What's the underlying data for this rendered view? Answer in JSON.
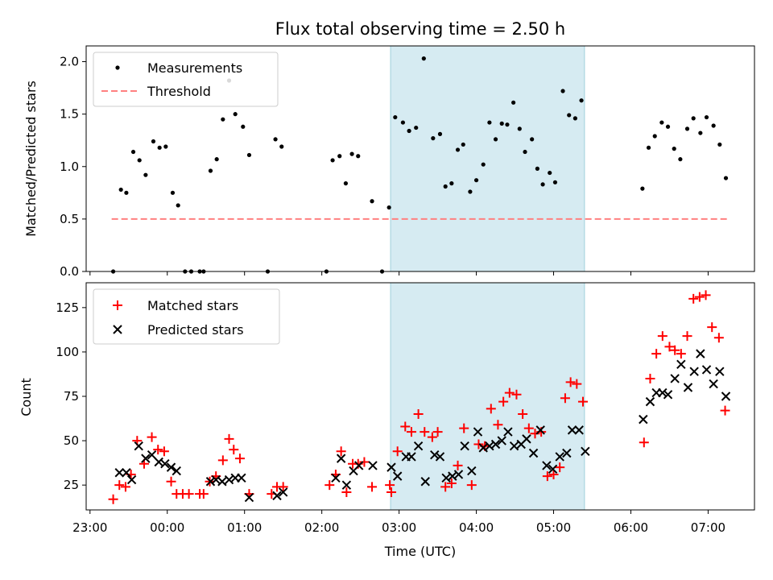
{
  "chart_data": {
    "title": "Flux total observing time = 2.50 h",
    "xlabel": "Time (UTC)",
    "x_unit": "hours_utc",
    "x_ticks": [
      {
        "value": -1,
        "label": "23:00"
      },
      {
        "value": 0,
        "label": "00:00"
      },
      {
        "value": 1,
        "label": "01:00"
      },
      {
        "value": 2,
        "label": "02:00"
      },
      {
        "value": 3,
        "label": "03:00"
      },
      {
        "value": 4,
        "label": "04:00"
      },
      {
        "value": 5,
        "label": "05:00"
      },
      {
        "value": 6,
        "label": "06:00"
      },
      {
        "value": 7,
        "label": "07:00"
      }
    ],
    "xlim": [
      -1.05,
      7.6
    ],
    "highlight_span": {
      "x": [
        2.89,
        5.4
      ],
      "color": "#add8e6"
    },
    "panels": [
      {
        "type": "scatter",
        "ylabel": "Matched/Predicted stars",
        "ylim": [
          0,
          2.15
        ],
        "y_ticks": [
          "0.0",
          "0.5",
          "1.0",
          "1.5",
          "2.0"
        ],
        "legend": "top-left",
        "series": [
          {
            "name": "Measurements",
            "marker": "dot",
            "color": "#000000",
            "points": [
              [
                -0.7,
                0.0
              ],
              [
                -0.6,
                0.78
              ],
              [
                -0.53,
                0.75
              ],
              [
                -0.44,
                1.14
              ],
              [
                -0.36,
                1.06
              ],
              [
                -0.28,
                0.92
              ],
              [
                -0.18,
                1.24
              ],
              [
                -0.1,
                1.18
              ],
              [
                -0.02,
                1.19
              ],
              [
                0.07,
                0.75
              ],
              [
                0.14,
                0.63
              ],
              [
                0.23,
                0.0
              ],
              [
                0.31,
                0.0
              ],
              [
                0.42,
                0.0
              ],
              [
                0.47,
                0.0
              ],
              [
                0.56,
                0.96
              ],
              [
                0.64,
                1.07
              ],
              [
                0.72,
                1.45
              ],
              [
                0.8,
                1.82
              ],
              [
                0.88,
                1.5
              ],
              [
                0.98,
                1.38
              ],
              [
                1.06,
                1.11
              ],
              [
                1.3,
                0.0
              ],
              [
                1.4,
                1.26
              ],
              [
                1.48,
                1.19
              ],
              [
                2.06,
                0.0
              ],
              [
                2.14,
                1.06
              ],
              [
                2.23,
                1.1
              ],
              [
                2.31,
                0.84
              ],
              [
                2.39,
                1.12
              ],
              [
                2.47,
                1.1
              ],
              [
                2.65,
                0.67
              ],
              [
                2.78,
                0.0
              ],
              [
                2.87,
                0.61
              ],
              [
                2.95,
                1.47
              ],
              [
                3.05,
                1.42
              ],
              [
                3.13,
                1.34
              ],
              [
                3.22,
                1.37
              ],
              [
                3.32,
                2.03
              ],
              [
                3.44,
                1.27
              ],
              [
                3.53,
                1.31
              ],
              [
                3.6,
                0.81
              ],
              [
                3.68,
                0.84
              ],
              [
                3.76,
                1.16
              ],
              [
                3.83,
                1.21
              ],
              [
                3.92,
                0.76
              ],
              [
                4.0,
                0.87
              ],
              [
                4.09,
                1.02
              ],
              [
                4.17,
                1.42
              ],
              [
                4.25,
                1.26
              ],
              [
                4.33,
                1.41
              ],
              [
                4.4,
                1.4
              ],
              [
                4.48,
                1.61
              ],
              [
                4.56,
                1.36
              ],
              [
                4.63,
                1.14
              ],
              [
                4.72,
                1.26
              ],
              [
                4.79,
                0.98
              ],
              [
                4.86,
                0.83
              ],
              [
                4.95,
                0.94
              ],
              [
                5.02,
                0.85
              ],
              [
                5.12,
                1.72
              ],
              [
                5.2,
                1.49
              ],
              [
                5.28,
                1.46
              ],
              [
                5.36,
                1.63
              ],
              [
                6.15,
                0.79
              ],
              [
                6.23,
                1.18
              ],
              [
                6.31,
                1.29
              ],
              [
                6.4,
                1.42
              ],
              [
                6.48,
                1.38
              ],
              [
                6.56,
                1.17
              ],
              [
                6.64,
                1.07
              ],
              [
                6.73,
                1.36
              ],
              [
                6.81,
                1.46
              ],
              [
                6.9,
                1.32
              ],
              [
                6.98,
                1.47
              ],
              [
                7.07,
                1.39
              ],
              [
                7.15,
                1.21
              ],
              [
                7.23,
                0.89
              ]
            ]
          },
          {
            "name": "Threshold",
            "type": "hline",
            "style": "dashed",
            "color": "#ff8080",
            "y": 0.5,
            "x_range": [
              -0.72,
              7.25
            ]
          }
        ]
      },
      {
        "type": "scatter",
        "ylabel": "Count",
        "ylim": [
          11,
          139
        ],
        "y_ticks": [
          "25",
          "50",
          "75",
          "100",
          "125"
        ],
        "legend": "top-left",
        "series": [
          {
            "name": "Matched stars",
            "marker": "plus",
            "color": "#ff0000",
            "points": [
              [
                -0.7,
                17
              ],
              [
                -0.62,
                25
              ],
              [
                -0.54,
                24
              ],
              [
                -0.47,
                31
              ],
              [
                -0.39,
                50
              ],
              [
                -0.3,
                37
              ],
              [
                -0.2,
                52
              ],
              [
                -0.12,
                45
              ],
              [
                -0.04,
                44
              ],
              [
                0.05,
                27
              ],
              [
                0.12,
                20
              ],
              [
                0.2,
                20
              ],
              [
                0.28,
                20
              ],
              [
                0.42,
                20
              ],
              [
                0.47,
                20
              ],
              [
                0.55,
                27
              ],
              [
                0.63,
                30
              ],
              [
                0.72,
                39
              ],
              [
                0.8,
                51
              ],
              [
                0.86,
                45
              ],
              [
                0.94,
                40
              ],
              [
                1.06,
                20
              ],
              [
                1.35,
                20
              ],
              [
                1.42,
                24
              ],
              [
                1.5,
                24
              ],
              [
                2.1,
                25
              ],
              [
                2.18,
                31
              ],
              [
                2.25,
                44
              ],
              [
                2.32,
                21
              ],
              [
                2.4,
                37
              ],
              [
                2.47,
                37
              ],
              [
                2.55,
                38
              ],
              [
                2.65,
                24
              ],
              [
                2.88,
                25
              ],
              [
                2.9,
                21
              ],
              [
                2.98,
                44
              ],
              [
                3.08,
                58
              ],
              [
                3.16,
                55
              ],
              [
                3.25,
                65
              ],
              [
                3.33,
                55
              ],
              [
                3.43,
                52
              ],
              [
                3.5,
                55
              ],
              [
                3.6,
                24
              ],
              [
                3.68,
                26
              ],
              [
                3.76,
                36
              ],
              [
                3.84,
                57
              ],
              [
                3.94,
                25
              ],
              [
                4.03,
                48
              ],
              [
                4.11,
                47
              ],
              [
                4.19,
                68
              ],
              [
                4.28,
                59
              ],
              [
                4.35,
                72
              ],
              [
                4.43,
                77
              ],
              [
                4.52,
                76
              ],
              [
                4.6,
                65
              ],
              [
                4.68,
                57
              ],
              [
                4.76,
                54
              ],
              [
                4.84,
                55
              ],
              [
                4.92,
                30
              ],
              [
                5.0,
                31
              ],
              [
                5.08,
                35
              ],
              [
                5.15,
                74
              ],
              [
                5.22,
                83
              ],
              [
                5.3,
                82
              ],
              [
                5.38,
                72
              ],
              [
                6.17,
                49
              ],
              [
                6.25,
                85
              ],
              [
                6.33,
                99
              ],
              [
                6.41,
                109
              ],
              [
                6.5,
                103
              ],
              [
                6.57,
                101
              ],
              [
                6.65,
                99
              ],
              [
                6.73,
                109
              ],
              [
                6.81,
                130
              ],
              [
                6.89,
                131
              ],
              [
                6.97,
                132
              ],
              [
                7.05,
                114
              ],
              [
                7.14,
                108
              ],
              [
                7.22,
                67
              ]
            ]
          },
          {
            "name": "Predicted stars",
            "marker": "x",
            "color": "#000000",
            "points": [
              [
                -0.62,
                32
              ],
              [
                -0.53,
                32
              ],
              [
                -0.46,
                28
              ],
              [
                -0.37,
                47
              ],
              [
                -0.28,
                40
              ],
              [
                -0.2,
                42
              ],
              [
                -0.11,
                38
              ],
              [
                -0.03,
                37
              ],
              [
                0.05,
                35
              ],
              [
                0.12,
                33
              ],
              [
                0.56,
                27
              ],
              [
                0.63,
                28
              ],
              [
                0.71,
                27
              ],
              [
                0.8,
                28
              ],
              [
                0.88,
                29
              ],
              [
                0.96,
                29
              ],
              [
                1.06,
                18
              ],
              [
                1.42,
                19
              ],
              [
                1.5,
                21
              ],
              [
                2.18,
                29
              ],
              [
                2.25,
                40
              ],
              [
                2.32,
                25
              ],
              [
                2.41,
                33
              ],
              [
                2.48,
                36
              ],
              [
                2.66,
                36
              ],
              [
                2.9,
                35
              ],
              [
                2.98,
                30
              ],
              [
                3.09,
                41
              ],
              [
                3.16,
                41
              ],
              [
                3.25,
                47
              ],
              [
                3.34,
                27
              ],
              [
                3.46,
                42
              ],
              [
                3.53,
                41
              ],
              [
                3.61,
                29
              ],
              [
                3.69,
                30
              ],
              [
                3.77,
                31
              ],
              [
                3.85,
                47
              ],
              [
                3.94,
                33
              ],
              [
                4.02,
                55
              ],
              [
                4.09,
                46
              ],
              [
                4.17,
                47
              ],
              [
                4.25,
                48
              ],
              [
                4.33,
                50
              ],
              [
                4.41,
                55
              ],
              [
                4.49,
                47
              ],
              [
                4.58,
                48
              ],
              [
                4.65,
                51
              ],
              [
                4.74,
                43
              ],
              [
                4.83,
                56
              ],
              [
                4.91,
                36
              ],
              [
                4.99,
                34
              ],
              [
                5.08,
                41
              ],
              [
                5.17,
                43
              ],
              [
                5.24,
                56
              ],
              [
                5.33,
                56
              ],
              [
                5.41,
                44
              ],
              [
                6.16,
                62
              ],
              [
                6.25,
                72
              ],
              [
                6.33,
                77
              ],
              [
                6.41,
                77
              ],
              [
                6.48,
                76
              ],
              [
                6.57,
                85
              ],
              [
                6.65,
                93
              ],
              [
                6.74,
                80
              ],
              [
                6.82,
                89
              ],
              [
                6.9,
                99
              ],
              [
                6.98,
                90
              ],
              [
                7.07,
                82
              ],
              [
                7.15,
                89
              ],
              [
                7.23,
                75
              ]
            ]
          }
        ]
      }
    ]
  }
}
